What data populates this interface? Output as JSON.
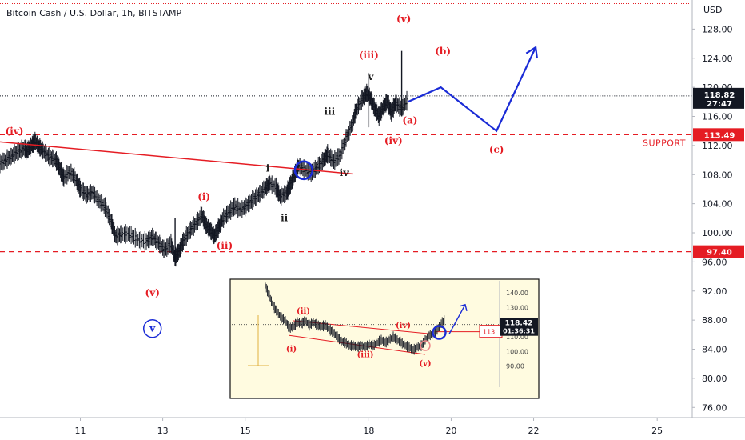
{
  "header": {
    "title": "Bitcoin Cash / U.S. Dollar, 1h, BITSTAMP",
    "currency": "USD"
  },
  "colors": {
    "candle": "#131722",
    "red": "#e51c23",
    "blue": "#1a2bd6",
    "inset_bg": "#fffbe0"
  },
  "chart_data": {
    "type": "line",
    "xlabel": "",
    "ylabel": "",
    "x_ticks": [
      11,
      13,
      15,
      18,
      20,
      22,
      25
    ],
    "x_range": [
      9.05,
      25.85
    ],
    "y_ticks": [
      "76.00",
      "80.00",
      "84.00",
      "88.00",
      "92.00",
      "96.00",
      "100.00",
      "104.00",
      "108.00",
      "112.00",
      "116.00",
      "120.00",
      "124.00",
      "128.00"
    ],
    "y_range": [
      74.6,
      132.0
    ],
    "price_series": [
      [
        9.05,
        109.5
      ],
      [
        9.2,
        110.0
      ],
      [
        9.35,
        110.6
      ],
      [
        9.5,
        111.2
      ],
      [
        9.65,
        111.6
      ],
      [
        9.7,
        111.2
      ],
      [
        9.8,
        111.9
      ],
      [
        9.9,
        112.6
      ],
      [
        10.0,
        111.8
      ],
      [
        10.1,
        111.2
      ],
      [
        10.25,
        110.4
      ],
      [
        10.4,
        110.0
      ],
      [
        10.5,
        108.8
      ],
      [
        10.6,
        107.5
      ],
      [
        10.75,
        108.4
      ],
      [
        10.9,
        107.2
      ],
      [
        11.0,
        106.0
      ],
      [
        11.15,
        105.2
      ],
      [
        11.3,
        105.5
      ],
      [
        11.45,
        104.4
      ],
      [
        11.6,
        103.5
      ],
      [
        11.75,
        101.5
      ],
      [
        11.85,
        99.5
      ],
      [
        12.0,
        99.8
      ],
      [
        12.2,
        99.8
      ],
      [
        12.4,
        99.0
      ],
      [
        12.6,
        98.8
      ],
      [
        12.75,
        99.4
      ],
      [
        12.9,
        98.6
      ],
      [
        13.05,
        97.6
      ],
      [
        13.2,
        98.5
      ],
      [
        13.3,
        96.5
      ],
      [
        13.4,
        97.5
      ],
      [
        13.5,
        98.8
      ],
      [
        13.65,
        100.2
      ],
      [
        13.8,
        101.2
      ],
      [
        13.95,
        102.4
      ],
      [
        14.05,
        101.0
      ],
      [
        14.15,
        100.4
      ],
      [
        14.25,
        99.5
      ],
      [
        14.35,
        100.6
      ],
      [
        14.45,
        101.8
      ],
      [
        14.6,
        102.8
      ],
      [
        14.75,
        103.6
      ],
      [
        14.9,
        103.1
      ],
      [
        15.05,
        103.8
      ],
      [
        15.2,
        104.6
      ],
      [
        15.35,
        105.3
      ],
      [
        15.5,
        106.2
      ],
      [
        15.6,
        106.8
      ],
      [
        15.75,
        106.2
      ],
      [
        15.85,
        105.0
      ],
      [
        16.0,
        105.4
      ],
      [
        16.1,
        106.6
      ],
      [
        16.2,
        108.0
      ],
      [
        16.3,
        109.2
      ],
      [
        16.45,
        108.6
      ],
      [
        16.6,
        108.2
      ],
      [
        16.75,
        109.0
      ],
      [
        16.9,
        110.0
      ],
      [
        17.0,
        110.8
      ],
      [
        17.15,
        109.8
      ],
      [
        17.3,
        110.6
      ],
      [
        17.45,
        113.0
      ],
      [
        17.6,
        115.0
      ],
      [
        17.7,
        117.0
      ],
      [
        17.85,
        118.4
      ],
      [
        17.95,
        119.2
      ],
      [
        18.05,
        118.4
      ],
      [
        18.15,
        117.0
      ],
      [
        18.25,
        116.0
      ],
      [
        18.35,
        117.2
      ],
      [
        18.45,
        118.0
      ],
      [
        18.55,
        116.5
      ],
      [
        18.65,
        117.8
      ],
      [
        18.8,
        117.0
      ],
      [
        18.95,
        118.3
      ]
    ],
    "price_range_markers": [
      {
        "low": 114.5,
        "high": 122.0,
        "at": 18.0
      },
      {
        "low": 116.0,
        "high": 125.0,
        "at": 18.8
      },
      {
        "low": 95.5,
        "high": 102.0,
        "at": 13.3
      },
      {
        "low": 111.0,
        "high": 113.0,
        "at": 9.85
      }
    ],
    "current_price": "118.82",
    "countdown": "27:47",
    "current_price_value": 118.82,
    "horizontal_levels": [
      {
        "label": "SUPPORT",
        "value": 113.49,
        "badge": "113.49"
      },
      {
        "label": "",
        "value": 97.4,
        "badge": "97.40"
      }
    ],
    "top_dotted_level": 131.5,
    "trendline": [
      [
        9.05,
        112.5
      ],
      [
        17.6,
        108.1
      ]
    ],
    "projection": [
      [
        18.95,
        118.0
      ],
      [
        19.75,
        120.0
      ],
      [
        21.1,
        114.0
      ],
      [
        22.05,
        125.5
      ]
    ],
    "circle_at": [
      16.42,
      108.6
    ],
    "wave_labels": [
      {
        "text": "(iv)",
        "x": 9.4,
        "y": 113.5,
        "color": "red"
      },
      {
        "text": "(v)",
        "x": 12.75,
        "y": 91.3,
        "color": "red"
      },
      {
        "text": "v",
        "x": 12.75,
        "y": 86.4,
        "color": "blue-circle"
      },
      {
        "text": "(i)",
        "x": 14.0,
        "y": 104.5,
        "color": "red"
      },
      {
        "text": "(ii)",
        "x": 14.5,
        "y": 97.8,
        "color": "red"
      },
      {
        "text": "i",
        "x": 15.55,
        "y": 108.4,
        "color": "dark"
      },
      {
        "text": "ii",
        "x": 15.95,
        "y": 101.6,
        "color": "dark"
      },
      {
        "text": "iii",
        "x": 17.05,
        "y": 116.2,
        "color": "dark"
      },
      {
        "text": "iv",
        "x": 17.4,
        "y": 107.8,
        "color": "dark"
      },
      {
        "text": "(iii)",
        "x": 18.0,
        "y": 124.0,
        "color": "red"
      },
      {
        "text": "v",
        "x": 18.05,
        "y": 121.0,
        "color": "dark"
      },
      {
        "text": "(iv)",
        "x": 18.6,
        "y": 112.2,
        "color": "red"
      },
      {
        "text": "(v)",
        "x": 18.85,
        "y": 129.0,
        "color": "red"
      },
      {
        "text": "(a)",
        "x": 19.0,
        "y": 115.0,
        "color": "red"
      },
      {
        "text": "(b)",
        "x": 19.8,
        "y": 124.5,
        "color": "red"
      },
      {
        "text": "(c)",
        "x": 21.1,
        "y": 111.0,
        "color": "red"
      }
    ]
  },
  "inset": {
    "y_ticks": [
      "140.00",
      "130.00",
      "120.00",
      "110.00",
      "100.00",
      "90.00"
    ],
    "y_range": [
      80,
      145
    ],
    "current_price": "118.42",
    "countdown": "01:36:31",
    "support_badge": "113",
    "series": [
      [
        0,
        145
      ],
      [
        0.02,
        138
      ],
      [
        0.04,
        131
      ],
      [
        0.06,
        127
      ],
      [
        0.08,
        123
      ],
      [
        0.1,
        121
      ],
      [
        0.12,
        116
      ],
      [
        0.14,
        117
      ],
      [
        0.16,
        120
      ],
      [
        0.18,
        119
      ],
      [
        0.2,
        121
      ],
      [
        0.22,
        118
      ],
      [
        0.24,
        120
      ],
      [
        0.26,
        118
      ],
      [
        0.28,
        117
      ],
      [
        0.3,
        118
      ],
      [
        0.32,
        115
      ],
      [
        0.34,
        113
      ],
      [
        0.36,
        110
      ],
      [
        0.38,
        107
      ],
      [
        0.4,
        106
      ],
      [
        0.42,
        104
      ],
      [
        0.44,
        104
      ],
      [
        0.46,
        103
      ],
      [
        0.48,
        104
      ],
      [
        0.5,
        103
      ],
      [
        0.52,
        105
      ],
      [
        0.54,
        104
      ],
      [
        0.56,
        106
      ],
      [
        0.58,
        108
      ],
      [
        0.6,
        106
      ],
      [
        0.62,
        108
      ],
      [
        0.64,
        110
      ],
      [
        0.66,
        108
      ],
      [
        0.68,
        106
      ],
      [
        0.7,
        104
      ],
      [
        0.72,
        103
      ],
      [
        0.74,
        101
      ],
      [
        0.76,
        103
      ],
      [
        0.78,
        104
      ],
      [
        0.8,
        108
      ],
      [
        0.82,
        111
      ],
      [
        0.84,
        112
      ],
      [
        0.86,
        115
      ],
      [
        0.88,
        119
      ],
      [
        0.9,
        122
      ]
    ],
    "wave_labels": [
      {
        "text": "(ii)",
        "x": 0.19,
        "y": 126
      },
      {
        "text": "(i)",
        "x": 0.13,
        "y": 100
      },
      {
        "text": "(iii)",
        "x": 0.5,
        "y": 96
      },
      {
        "text": "(iv)",
        "x": 0.69,
        "y": 116
      },
      {
        "text": "(v)",
        "x": 0.8,
        "y": 90
      }
    ]
  }
}
